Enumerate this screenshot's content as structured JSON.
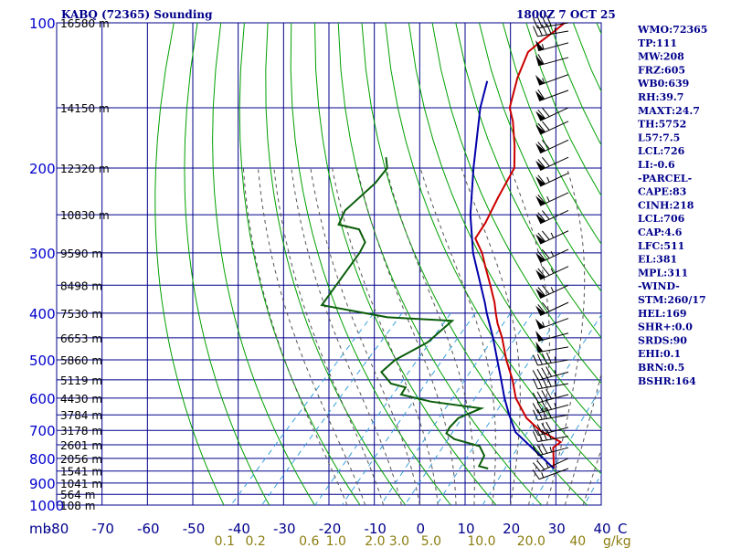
{
  "title_left": "KABQ (72365) Sounding",
  "title_right": "1800Z  7 OCT 25",
  "colors": {
    "grid": "#00008b",
    "temperature": "#cc0000",
    "dewpoint": "#0b5d0b",
    "parcel": "#0000aa",
    "dry_adiabat": "#00a000",
    "moist_adiabat": "#555555",
    "mixing_ratio": "#3aa0dd",
    "wind_barb": "#000000"
  },
  "stats": [
    "WMO:72365",
    "TP:111",
    "MW:208",
    "FRZ:605",
    "WB0:639",
    "RH:39.7",
    "MAXT:24.7",
    "TH:5752",
    "L57:7.5",
    "LCL:726",
    "LI:-0.6",
    "-PARCEL-",
    "CAPE:83",
    "CINH:218",
    "LCL:706",
    "CAP:4.6",
    "LFC:511",
    "EL:381",
    "MPL:311",
    "-WIND-",
    "STM:260/17",
    "HEL:169",
    "SHR+:0.0",
    "SRDS:90",
    "EHI:0.1",
    "BRN:0.5",
    "BSHR:164"
  ],
  "chart_data": {
    "type": "line",
    "title": "KABQ (72365) Sounding",
    "xlabel": "°C",
    "ylabel": "mb",
    "xlim": [
      -80,
      40
    ],
    "ylim": [
      1000,
      100
    ],
    "y_scale": "log",
    "pressure_ticks": [
      "100",
      "200",
      "300",
      "400",
      "500",
      "600",
      "700",
      "800",
      "900",
      "1000"
    ],
    "pressure_unit_label": "mb",
    "temperature_ticks": [
      "-80",
      "-70",
      "-60",
      "-50",
      "-40",
      "-30",
      "-20",
      "-10",
      "0",
      "10",
      "20",
      "30",
      "40"
    ],
    "temperature_unit_label": "C",
    "height_labels": [
      {
        "p": 100,
        "label": "16580 m"
      },
      {
        "p": 150,
        "label": "14150 m"
      },
      {
        "p": 200,
        "label": "12320 m"
      },
      {
        "p": 250,
        "label": "10830 m"
      },
      {
        "p": 300,
        "label": "9590 m"
      },
      {
        "p": 350,
        "label": "8498 m"
      },
      {
        "p": 400,
        "label": "7530 m"
      },
      {
        "p": 450,
        "label": "6653 m"
      },
      {
        "p": 500,
        "label": "5860 m"
      },
      {
        "p": 550,
        "label": "5119 m"
      },
      {
        "p": 600,
        "label": "4430 m"
      },
      {
        "p": 650,
        "label": "3784 m"
      },
      {
        "p": 700,
        "label": "3178 m"
      },
      {
        "p": 750,
        "label": "2601 m"
      },
      {
        "p": 800,
        "label": "2056 m"
      },
      {
        "p": 850,
        "label": "1541 m"
      },
      {
        "p": 900,
        "label": "1041 m"
      },
      {
        "p": 950,
        "label": "564 m"
      },
      {
        "p": 1000,
        "label": "108 m"
      }
    ],
    "mixing_ratio_ticks": [
      {
        "w": 0.1,
        "label": "0.1"
      },
      {
        "w": 0.2,
        "label": "0.2"
      },
      {
        "w": 0.6,
        "label": "0.6"
      },
      {
        "w": 1.0,
        "label": "1.0"
      },
      {
        "w": 2.0,
        "label": "2.0"
      },
      {
        "w": 3.0,
        "label": "3.0"
      },
      {
        "w": 5.0,
        "label": "5.0"
      },
      {
        "w": 10.0,
        "label": "10.0"
      },
      {
        "w": 20.0,
        "label": "20.0"
      },
      {
        "w": 40.0,
        "label": "40"
      }
    ],
    "mixing_ratio_unit_label": "g/kg",
    "series": [
      {
        "name": "Temperature",
        "points": [
          {
            "p": 840,
            "t": 22.0
          },
          {
            "p": 760,
            "t": 17.5
          },
          {
            "p": 740,
            "t": 18.0
          },
          {
            "p": 700,
            "t": 11.0
          },
          {
            "p": 660,
            "t": 5.5
          },
          {
            "p": 600,
            "t": -1.0
          },
          {
            "p": 550,
            "t": -5.5
          },
          {
            "p": 500,
            "t": -11.0
          },
          {
            "p": 450,
            "t": -16.5
          },
          {
            "p": 420,
            "t": -20.5
          },
          {
            "p": 400,
            "t": -23.0
          },
          {
            "p": 380,
            "t": -25.5
          },
          {
            "p": 350,
            "t": -30.0
          },
          {
            "p": 320,
            "t": -35.0
          },
          {
            "p": 300,
            "t": -38.5
          },
          {
            "p": 280,
            "t": -43.0
          },
          {
            "p": 260,
            "t": -44.0
          },
          {
            "p": 230,
            "t": -46.5
          },
          {
            "p": 200,
            "t": -49.0
          },
          {
            "p": 180,
            "t": -53.5
          },
          {
            "p": 160,
            "t": -59.0
          },
          {
            "p": 150,
            "t": -62.5
          },
          {
            "p": 130,
            "t": -67.0
          },
          {
            "p": 115,
            "t": -70.0
          },
          {
            "p": 110,
            "t": -69.5
          },
          {
            "p": 104,
            "t": -68.5
          },
          {
            "p": 100,
            "t": -68.0
          }
        ]
      },
      {
        "name": "Dewpoint",
        "points": [
          {
            "p": 840,
            "t": 7.5
          },
          {
            "p": 830,
            "t": 5.0
          },
          {
            "p": 790,
            "t": 4.0
          },
          {
            "p": 755,
            "t": 1.0
          },
          {
            "p": 730,
            "t": -6.0
          },
          {
            "p": 710,
            "t": -9.0
          },
          {
            "p": 690,
            "t": -9.5
          },
          {
            "p": 660,
            "t": -9.5
          },
          {
            "p": 630,
            "t": -6.5
          },
          {
            "p": 610,
            "t": -19.0
          },
          {
            "p": 590,
            "t": -27.0
          },
          {
            "p": 570,
            "t": -27.5
          },
          {
            "p": 560,
            "t": -31.5
          },
          {
            "p": 530,
            "t": -36.0
          },
          {
            "p": 500,
            "t": -35.5
          },
          {
            "p": 460,
            "t": -32.0
          },
          {
            "p": 415,
            "t": -31.0
          },
          {
            "p": 408,
            "t": -46.0
          },
          {
            "p": 385,
            "t": -63.0
          },
          {
            "p": 300,
            "t": -65.5
          },
          {
            "p": 285,
            "t": -66.5
          },
          {
            "p": 268,
            "t": -70.5
          },
          {
            "p": 262,
            "t": -76.0
          },
          {
            "p": 245,
            "t": -77.5
          },
          {
            "p": 215,
            "t": -76.5
          },
          {
            "p": 200,
            "t": -77.0
          },
          {
            "p": 190,
            "t": -79.5
          }
        ]
      },
      {
        "name": "Parcel",
        "points": [
          {
            "p": 840,
            "t": 22.0
          },
          {
            "p": 706,
            "t": 6.0
          },
          {
            "p": 650,
            "t": 1.0
          },
          {
            "p": 600,
            "t": -3.5
          },
          {
            "p": 550,
            "t": -8.0
          },
          {
            "p": 500,
            "t": -13.0
          },
          {
            "p": 450,
            "t": -18.5
          },
          {
            "p": 400,
            "t": -25.0
          },
          {
            "p": 381,
            "t": -27.5
          },
          {
            "p": 300,
            "t": -40.5
          },
          {
            "p": 250,
            "t": -49.0
          },
          {
            "p": 200,
            "t": -58.0
          },
          {
            "p": 150,
            "t": -69.0
          },
          {
            "p": 132,
            "t": -73.0
          }
        ]
      }
    ],
    "wind_barbs": [
      {
        "p": 840,
        "dir": 250,
        "spd": 15
      },
      {
        "p": 800,
        "dir": 245,
        "spd": 25
      },
      {
        "p": 760,
        "dir": 255,
        "spd": 35
      },
      {
        "p": 720,
        "dir": 260,
        "spd": 40
      },
      {
        "p": 690,
        "dir": 255,
        "spd": 40
      },
      {
        "p": 650,
        "dir": 260,
        "spd": 40
      },
      {
        "p": 620,
        "dir": 255,
        "spd": 45
      },
      {
        "p": 590,
        "dir": 255,
        "spd": 45
      },
      {
        "p": 560,
        "dir": 260,
        "spd": 45
      },
      {
        "p": 530,
        "dir": 255,
        "spd": 45
      },
      {
        "p": 500,
        "dir": 260,
        "spd": 45
      },
      {
        "p": 470,
        "dir": 260,
        "spd": 50
      },
      {
        "p": 440,
        "dir": 255,
        "spd": 50
      },
      {
        "p": 410,
        "dir": 250,
        "spd": 55
      },
      {
        "p": 380,
        "dir": 245,
        "spd": 70
      },
      {
        "p": 350,
        "dir": 245,
        "spd": 75
      },
      {
        "p": 320,
        "dir": 245,
        "spd": 75
      },
      {
        "p": 295,
        "dir": 245,
        "spd": 75
      },
      {
        "p": 270,
        "dir": 245,
        "spd": 75
      },
      {
        "p": 245,
        "dir": 245,
        "spd": 70
      },
      {
        "p": 225,
        "dir": 245,
        "spd": 65
      },
      {
        "p": 205,
        "dir": 245,
        "spd": 65
      },
      {
        "p": 190,
        "dir": 245,
        "spd": 70
      },
      {
        "p": 175,
        "dir": 245,
        "spd": 70
      },
      {
        "p": 160,
        "dir": 245,
        "spd": 70
      },
      {
        "p": 150,
        "dir": 245,
        "spd": 70
      },
      {
        "p": 138,
        "dir": 250,
        "spd": 60
      },
      {
        "p": 128,
        "dir": 250,
        "spd": 55
      },
      {
        "p": 118,
        "dir": 255,
        "spd": 60
      },
      {
        "p": 110,
        "dir": 255,
        "spd": 55
      },
      {
        "p": 104,
        "dir": 260,
        "spd": 45
      },
      {
        "p": 100,
        "dir": 260,
        "spd": 40
      }
    ]
  }
}
